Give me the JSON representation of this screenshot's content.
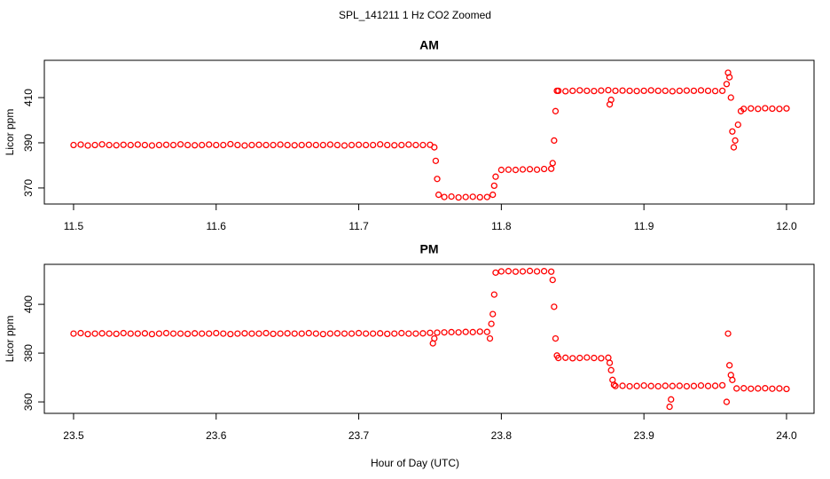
{
  "title": "SPL_141211  1 Hz CO2 Zoomed",
  "xlabel": "Hour of Day (UTC)",
  "chart_data": [
    {
      "type": "scatter",
      "title": "AM",
      "ylabel": "Licor ppm",
      "color": "#ff0000",
      "xlim": [
        11.4795,
        12.0193
      ],
      "ylim": [
        362.9,
        426.5
      ],
      "xticks": [
        11.5,
        11.6,
        11.7,
        11.8,
        11.9,
        {
          "value": 12,
          "label": "12.0"
        }
      ],
      "yticks": [
        370,
        390,
        410
      ],
      "x": [
        11.5,
        11.505,
        11.51,
        11.515,
        11.52,
        11.525,
        11.53,
        11.535,
        11.54,
        11.545,
        11.55,
        11.555,
        11.56,
        11.565,
        11.57,
        11.575,
        11.58,
        11.585,
        11.59,
        11.595,
        11.6,
        11.605,
        11.61,
        11.615,
        11.62,
        11.625,
        11.63,
        11.635,
        11.64,
        11.645,
        11.65,
        11.655,
        11.66,
        11.665,
        11.67,
        11.675,
        11.68,
        11.685,
        11.69,
        11.695,
        11.7,
        11.705,
        11.71,
        11.715,
        11.72,
        11.725,
        11.73,
        11.735,
        11.74,
        11.745,
        11.75,
        11.753,
        11.754,
        11.755,
        11.756,
        11.76,
        11.765,
        11.77,
        11.775,
        11.78,
        11.785,
        11.79,
        11.794,
        11.795,
        11.796,
        11.8,
        11.805,
        11.81,
        11.815,
        11.82,
        11.825,
        11.83,
        11.835,
        11.836,
        11.837,
        11.838,
        11.839,
        11.84,
        11.845,
        11.85,
        11.855,
        11.86,
        11.865,
        11.87,
        11.875,
        11.876,
        11.877,
        11.88,
        11.885,
        11.89,
        11.895,
        11.9,
        11.905,
        11.91,
        11.915,
        11.92,
        11.925,
        11.93,
        11.935,
        11.94,
        11.945,
        11.95,
        11.955,
        11.958,
        11.959,
        11.96,
        11.961,
        11.962,
        11.963,
        11.964,
        11.966,
        11.968,
        11.97,
        11.975,
        11.98,
        11.985,
        11.99,
        11.995,
        12.0
      ],
      "values": [
        389,
        389.2,
        388.8,
        389,
        389.3,
        389,
        388.9,
        389.1,
        389,
        389.2,
        389,
        388.8,
        389,
        389.1,
        389,
        389.3,
        389,
        388.9,
        389,
        389.2,
        389,
        389,
        389.4,
        389,
        388.8,
        389,
        389.1,
        389,
        389,
        389.2,
        389,
        388.9,
        389,
        389.1,
        389,
        389,
        389.2,
        389,
        388.8,
        389,
        389.1,
        389,
        389,
        389.3,
        389,
        388.9,
        389,
        389.2,
        389,
        389,
        389.1,
        388,
        382,
        374,
        367,
        366,
        366.2,
        365.8,
        366,
        366.1,
        365.9,
        366,
        367,
        371,
        375,
        378,
        378.1,
        378,
        378.2,
        378.3,
        378.1,
        378.4,
        378.5,
        381,
        391,
        404,
        413,
        413,
        412.8,
        413,
        413.2,
        413,
        412.9,
        413.1,
        413.3,
        407,
        409,
        413,
        413.1,
        413,
        412.9,
        413,
        413.2,
        413,
        413,
        412.8,
        413,
        413.1,
        413,
        413.2,
        413,
        412.9,
        413,
        416,
        421,
        419,
        410,
        395,
        388,
        391,
        398,
        404,
        405,
        405.2,
        405,
        405.3,
        405.1,
        405,
        405.2
      ]
    },
    {
      "type": "scatter",
      "title": "PM",
      "ylabel": "Licor ppm",
      "color": "#ff0000",
      "xlim": [
        23.4795,
        24.0193
      ],
      "ylim": [
        355.3,
        416.4
      ],
      "xticks": [
        23.5,
        23.6,
        23.7,
        23.8,
        23.9,
        {
          "value": 24,
          "label": "24.0"
        }
      ],
      "yticks": [
        360,
        380,
        400
      ],
      "x": [
        23.5,
        23.505,
        23.51,
        23.515,
        23.52,
        23.525,
        23.53,
        23.535,
        23.54,
        23.545,
        23.55,
        23.555,
        23.56,
        23.565,
        23.57,
        23.575,
        23.58,
        23.585,
        23.59,
        23.595,
        23.6,
        23.605,
        23.61,
        23.615,
        23.62,
        23.625,
        23.63,
        23.635,
        23.64,
        23.645,
        23.65,
        23.655,
        23.66,
        23.665,
        23.67,
        23.675,
        23.68,
        23.685,
        23.69,
        23.695,
        23.7,
        23.705,
        23.71,
        23.715,
        23.72,
        23.725,
        23.73,
        23.735,
        23.74,
        23.745,
        23.75,
        23.752,
        23.753,
        23.755,
        23.76,
        23.765,
        23.77,
        23.775,
        23.78,
        23.785,
        23.79,
        23.792,
        23.793,
        23.794,
        23.795,
        23.796,
        23.8,
        23.805,
        23.81,
        23.815,
        23.82,
        23.825,
        23.83,
        23.835,
        23.836,
        23.837,
        23.838,
        23.839,
        23.84,
        23.845,
        23.85,
        23.855,
        23.86,
        23.865,
        23.87,
        23.875,
        23.876,
        23.877,
        23.878,
        23.879,
        23.88,
        23.885,
        23.89,
        23.895,
        23.9,
        23.905,
        23.91,
        23.915,
        23.918,
        23.919,
        23.92,
        23.925,
        23.93,
        23.935,
        23.94,
        23.945,
        23.95,
        23.955,
        23.958,
        23.959,
        23.96,
        23.961,
        23.962,
        23.965,
        23.97,
        23.975,
        23.98,
        23.985,
        23.99,
        23.995,
        24.0
      ],
      "values": [
        388,
        388.2,
        387.8,
        388,
        388.1,
        388,
        387.9,
        388.2,
        388,
        388,
        388.1,
        387.8,
        388,
        388.2,
        388,
        388,
        387.9,
        388.1,
        388,
        388,
        388.2,
        388,
        387.8,
        388,
        388.1,
        388,
        388,
        388.2,
        387.9,
        388,
        388.1,
        388,
        388,
        388.2,
        388,
        387.8,
        388,
        388.1,
        388,
        388,
        388.2,
        388,
        388,
        388.1,
        387.9,
        388,
        388.2,
        388,
        388,
        388.1,
        388.3,
        384,
        386,
        388.4,
        388.5,
        388.6,
        388.5,
        388.7,
        388.6,
        388.8,
        388.7,
        386,
        392,
        396,
        404,
        413,
        413.5,
        413.6,
        413.4,
        413.5,
        413.7,
        413.5,
        413.6,
        413.4,
        410,
        399,
        386,
        379,
        378,
        378.1,
        377.9,
        378,
        378.2,
        378,
        377.9,
        378.1,
        376,
        373,
        369,
        367,
        366.5,
        366.6,
        366.4,
        366.5,
        366.7,
        366.5,
        366.4,
        366.6,
        358,
        361,
        366.5,
        366.6,
        366.4,
        366.5,
        366.7,
        366.5,
        366.6,
        366.8,
        360,
        388,
        375,
        371,
        369,
        365.5,
        365.6,
        365.4,
        365.5,
        365.6,
        365.4,
        365.5,
        365.3
      ]
    }
  ]
}
